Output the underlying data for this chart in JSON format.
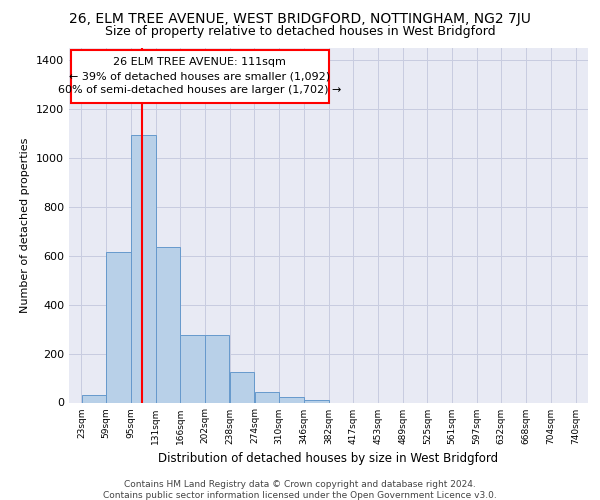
{
  "title": "26, ELM TREE AVENUE, WEST BRIDGFORD, NOTTINGHAM, NG2 7JU",
  "subtitle": "Size of property relative to detached houses in West Bridgford",
  "xlabel": "Distribution of detached houses by size in West Bridgford",
  "ylabel": "Number of detached properties",
  "footer_line1": "Contains HM Land Registry data © Crown copyright and database right 2024.",
  "footer_line2": "Contains public sector information licensed under the Open Government Licence v3.0.",
  "annotation_line1": "26 ELM TREE AVENUE: 111sqm",
  "annotation_line2": "← 39% of detached houses are smaller (1,092)",
  "annotation_line3": "60% of semi-detached houses are larger (1,702) →",
  "bin_edges": [
    23,
    59,
    95,
    131,
    166,
    202,
    238,
    274,
    310,
    346,
    382,
    417,
    453,
    489,
    525,
    561,
    597,
    632,
    668,
    704,
    740
  ],
  "bar_heights": [
    32,
    614,
    1092,
    635,
    275,
    275,
    125,
    42,
    22,
    12,
    0,
    0,
    0,
    0,
    0,
    0,
    0,
    0,
    0,
    0
  ],
  "bar_color": "#b8d0e8",
  "bar_edge_color": "#6699cc",
  "vline_x": 111,
  "vline_color": "red",
  "ylim": [
    0,
    1450
  ],
  "yticks": [
    0,
    200,
    400,
    600,
    800,
    1000,
    1200,
    1400
  ],
  "xlim": [
    5,
    758
  ],
  "xtick_labels": [
    "23sqm",
    "59sqm",
    "95sqm",
    "131sqm",
    "166sqm",
    "202sqm",
    "238sqm",
    "274sqm",
    "310sqm",
    "346sqm",
    "382sqm",
    "417sqm",
    "453sqm",
    "489sqm",
    "525sqm",
    "561sqm",
    "597sqm",
    "632sqm",
    "668sqm",
    "704sqm",
    "740sqm"
  ],
  "xtick_positions": [
    23,
    59,
    95,
    131,
    166,
    202,
    238,
    274,
    310,
    346,
    382,
    417,
    453,
    489,
    525,
    561,
    597,
    632,
    668,
    704,
    740
  ],
  "grid_color": "#c8cce0",
  "axes_bg_color": "#e8eaf4",
  "title_fontsize": 10,
  "subtitle_fontsize": 9,
  "ylabel_fontsize": 8,
  "xlabel_fontsize": 8.5,
  "tick_fontsize": 6.5,
  "annotation_fontsize": 8
}
